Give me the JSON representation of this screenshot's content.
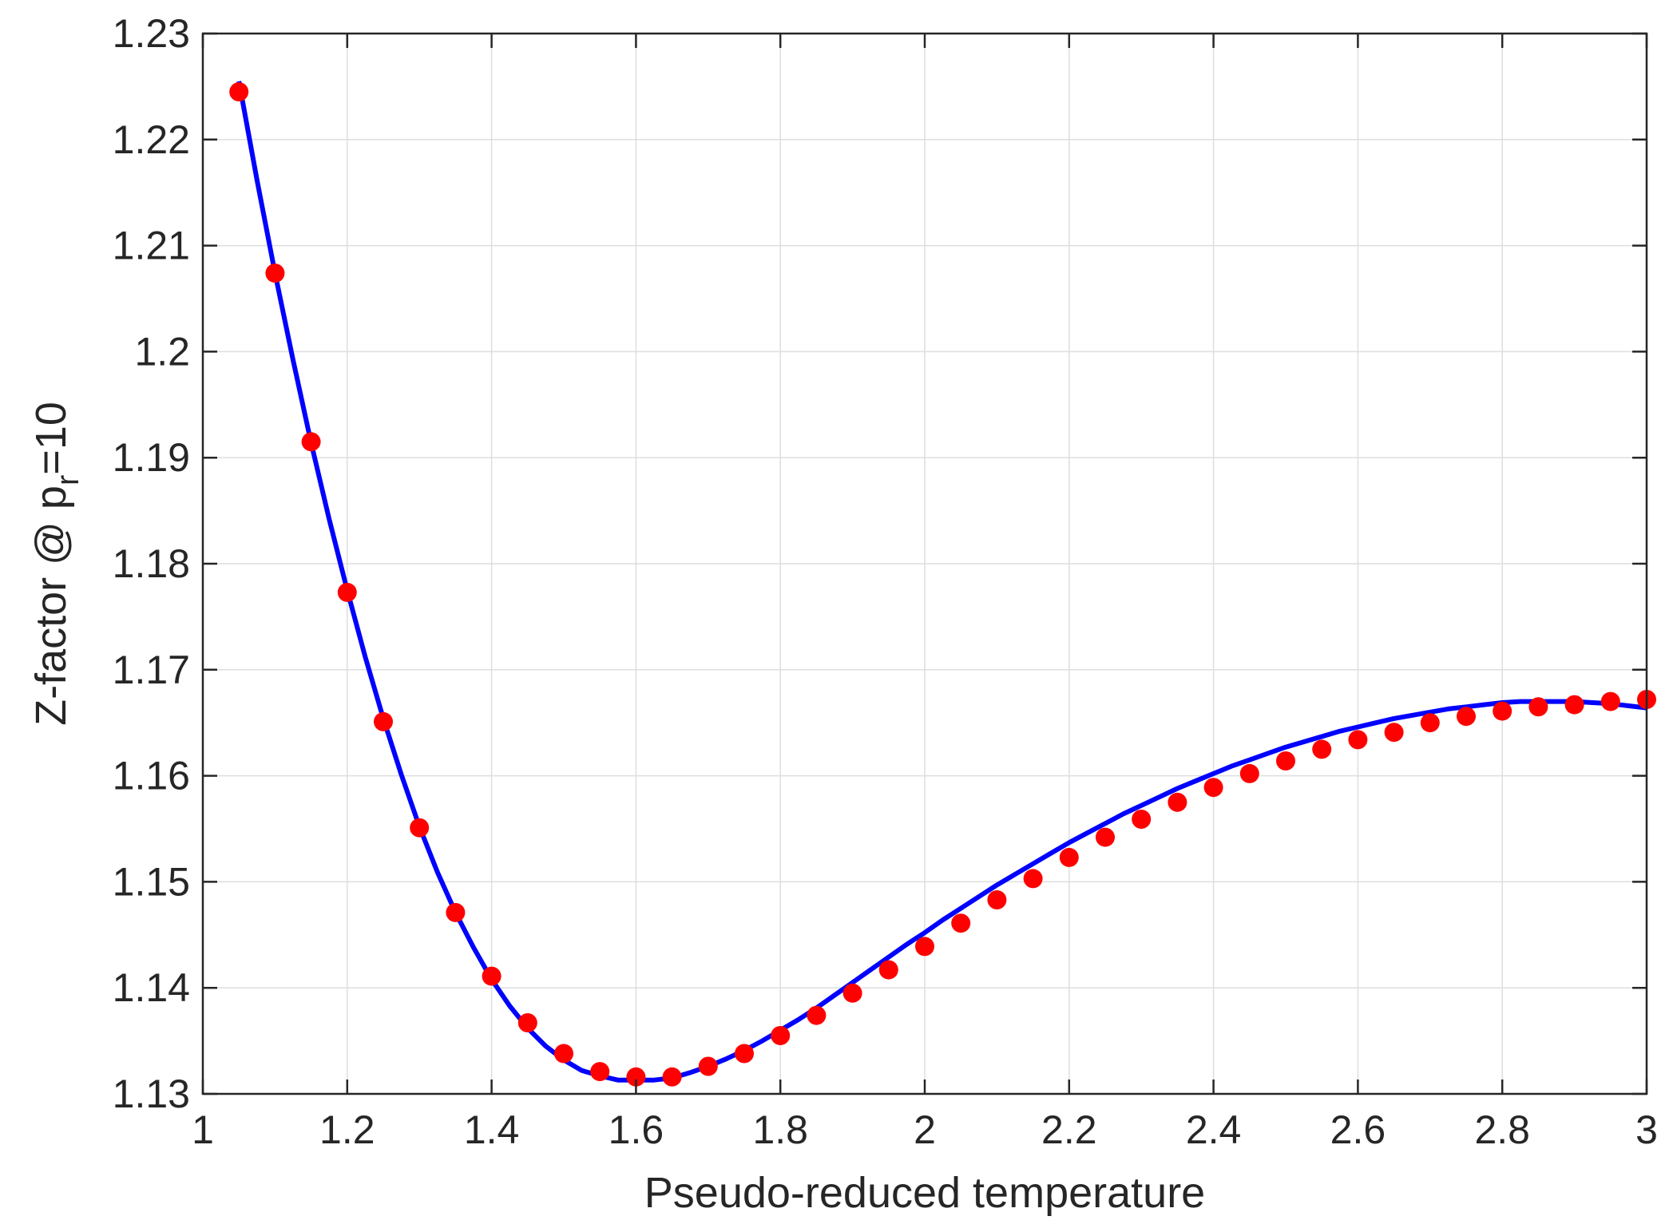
{
  "chart_data": {
    "type": "line",
    "title": "",
    "xlabel": "Pseudo-reduced temperature",
    "ylabel": {
      "prefix": "Z-factor @ p",
      "subscript": "r",
      "suffix": "=10"
    },
    "xlim": [
      1,
      3
    ],
    "ylim": [
      1.13,
      1.23
    ],
    "xticks": [
      1,
      1.2,
      1.4,
      1.6,
      1.8,
      2,
      2.2,
      2.4,
      2.6,
      2.8,
      3
    ],
    "xtick_labels": [
      "1",
      "1.2",
      "1.4",
      "1.6",
      "1.8",
      "2",
      "2.2",
      "2.4",
      "2.6",
      "2.8",
      "3"
    ],
    "yticks": [
      1.13,
      1.14,
      1.15,
      1.16,
      1.17,
      1.18,
      1.19,
      1.2,
      1.21,
      1.22,
      1.23
    ],
    "ytick_labels": [
      "1.13",
      "1.14",
      "1.15",
      "1.16",
      "1.17",
      "1.18",
      "1.19",
      "1.2",
      "1.21",
      "1.22",
      "1.23"
    ],
    "grid": true,
    "legend": "none",
    "series": [
      {
        "kind": "scatter",
        "color": "#ff0000",
        "x": [
          1.05,
          1.1,
          1.15,
          1.2,
          1.25,
          1.3,
          1.35,
          1.4,
          1.45,
          1.5,
          1.55,
          1.6,
          1.65,
          1.7,
          1.75,
          1.8,
          1.85,
          1.9,
          1.95,
          2.0,
          2.05,
          2.1,
          2.15,
          2.2,
          2.25,
          2.3,
          2.35,
          2.4,
          2.45,
          2.5,
          2.55,
          2.6,
          2.65,
          2.7,
          2.75,
          2.8,
          2.85,
          2.9,
          2.95,
          3.0
        ],
        "y": [
          1.2245,
          1.2074,
          1.1915,
          1.1773,
          1.1651,
          1.1551,
          1.1471,
          1.1411,
          1.1367,
          1.1338,
          1.1321,
          1.1316,
          1.1316,
          1.1326,
          1.1338,
          1.1355,
          1.1374,
          1.1395,
          1.1417,
          1.1439,
          1.1461,
          1.1483,
          1.1503,
          1.1523,
          1.1542,
          1.1559,
          1.1575,
          1.1589,
          1.1602,
          1.1614,
          1.1625,
          1.1634,
          1.1641,
          1.165,
          1.1656,
          1.1661,
          1.1665,
          1.1667,
          1.167,
          1.1672
        ]
      },
      {
        "kind": "line",
        "color": "#0000ff",
        "x": [
          1.05,
          1.075,
          1.1,
          1.125,
          1.15,
          1.175,
          1.2,
          1.225,
          1.25,
          1.275,
          1.3,
          1.325,
          1.35,
          1.375,
          1.4,
          1.425,
          1.45,
          1.475,
          1.5,
          1.525,
          1.55,
          1.575,
          1.6,
          1.625,
          1.65,
          1.675,
          1.7,
          1.725,
          1.75,
          1.775,
          1.8,
          1.825,
          1.85,
          1.875,
          1.9,
          1.925,
          1.95,
          1.975,
          2.0,
          2.025,
          2.05,
          2.075,
          2.1,
          2.125,
          2.15,
          2.175,
          2.2,
          2.225,
          2.25,
          2.275,
          2.3,
          2.325,
          2.35,
          2.375,
          2.4,
          2.425,
          2.45,
          2.475,
          2.5,
          2.525,
          2.55,
          2.575,
          2.6,
          2.625,
          2.65,
          2.675,
          2.7,
          2.725,
          2.75,
          2.775,
          2.8,
          2.825,
          2.85,
          2.875,
          2.9,
          2.925,
          2.95,
          2.975,
          3.0
        ],
        "y": [
          1.2255,
          1.2162,
          1.2074,
          1.1992,
          1.1914,
          1.1842,
          1.1775,
          1.1712,
          1.1654,
          1.1601,
          1.1552,
          1.1509,
          1.1471,
          1.1438,
          1.1408,
          1.1383,
          1.1362,
          1.1345,
          1.1332,
          1.1322,
          1.1317,
          1.1313,
          1.1313,
          1.1313,
          1.1315,
          1.132,
          1.1326,
          1.1333,
          1.1341,
          1.135,
          1.136,
          1.137,
          1.1381,
          1.1393,
          1.1405,
          1.1417,
          1.1429,
          1.1441,
          1.1452,
          1.1464,
          1.1475,
          1.1486,
          1.1497,
          1.1507,
          1.1517,
          1.1527,
          1.1537,
          1.1546,
          1.1555,
          1.1564,
          1.1572,
          1.158,
          1.1588,
          1.1595,
          1.1602,
          1.1609,
          1.1615,
          1.1621,
          1.1627,
          1.1632,
          1.1637,
          1.1642,
          1.1646,
          1.165,
          1.1654,
          1.1657,
          1.166,
          1.1663,
          1.1665,
          1.1667,
          1.1669,
          1.167,
          1.167,
          1.167,
          1.167,
          1.1669,
          1.1668,
          1.1666,
          1.1664
        ]
      }
    ]
  }
}
